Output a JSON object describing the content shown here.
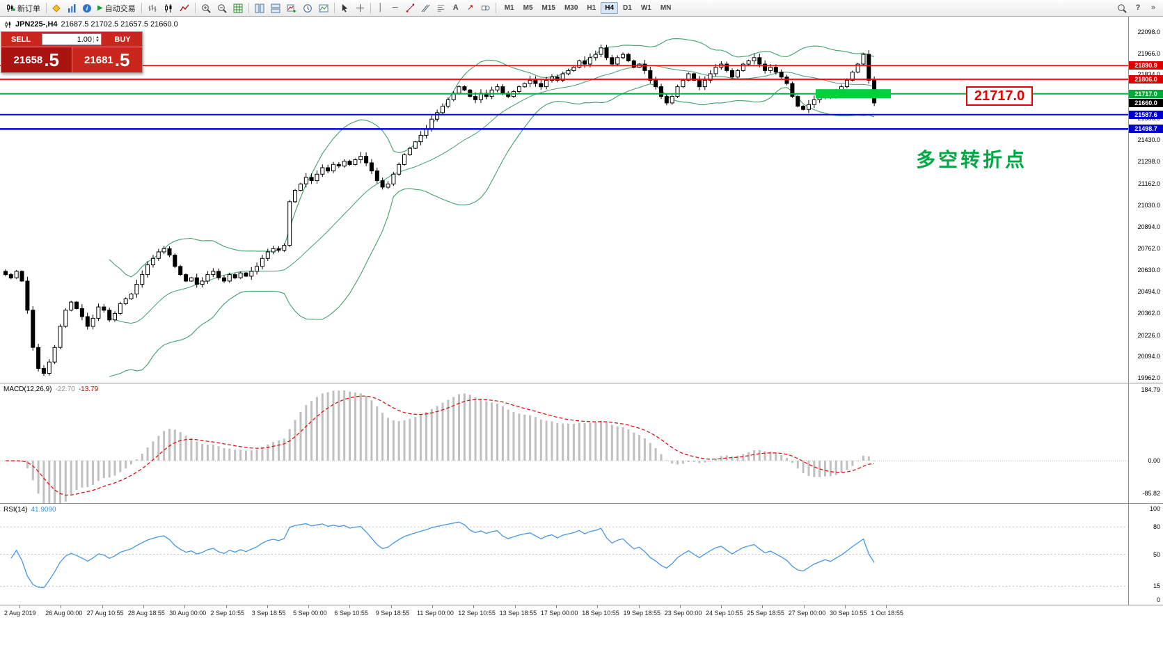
{
  "toolbar": {
    "new_order_label": "新订单",
    "autotrading_label": "自动交易",
    "timeframes": [
      "M1",
      "M5",
      "M15",
      "M30",
      "H1",
      "H4",
      "D1",
      "W1",
      "MN"
    ],
    "active_timeframe": "H4"
  },
  "icons": {
    "new_order": "candlestick-plus",
    "metaeditor": "yellow-diamond",
    "profiles": "bar-chart-blue",
    "expert_advisors": "info-circle",
    "autotrading_play": "green-play-triangle",
    "chart_bars": "ohlc-bars",
    "chart_candles": "candlesticks",
    "chart_line": "line-zigzag",
    "zoom_in": "magnifier-plus",
    "zoom_out": "magnifier-minus",
    "grid": "green-grid",
    "tile_windows": "tiled-rects",
    "new_chart": "chart-plus",
    "period": "clock",
    "cursor": "arrow-pointer",
    "crosshair": "crosshair",
    "vertical_line": "vertical-bar",
    "horizontal_line": "horizontal-bar",
    "trendline": "diagonal-line",
    "channel": "parallel-lines",
    "fibonacci": "fibo-levels",
    "text": "A",
    "arrow_objects": "arrow-up-right",
    "shapes": "rect-ellipse",
    "search": "magnifier",
    "overflow": "chevrons"
  },
  "chart_header": {
    "symbol": "JPN225-,H4",
    "ohlc": "21687.5 21702.5 21657.5 21660.0"
  },
  "trade_panel": {
    "sell_label": "SELL",
    "buy_label": "BUY",
    "volume": "1.00",
    "sell_price": "21658",
    "sell_frac": ".5",
    "buy_price": "21681",
    "buy_frac": ".5"
  },
  "macd_panel": {
    "name": "MACD(12,26,9)",
    "value": "-22.70",
    "signal": "-13.79",
    "scale": [
      "184.79",
      "0.00",
      "-85.82"
    ]
  },
  "rsi_panel": {
    "name": "RSI(14)",
    "value": "41.9090",
    "scale": [
      "100",
      "80",
      "50",
      "15",
      "0"
    ]
  },
  "annotation": {
    "text": "多空转折点",
    "color": "#00a843"
  },
  "callout": {
    "price": "21717.0"
  },
  "chart_data": {
    "type": "candlestick",
    "symbol": "JPN225-",
    "timeframe": "H4",
    "y_range": [
      19962.0,
      22098.0
    ],
    "bollinger": {
      "period": 20,
      "deviation": 2
    },
    "macd": {
      "fast": 12,
      "slow": 26,
      "signal": 9,
      "current": -22.7,
      "signal_current": -13.79
    },
    "rsi": {
      "period": 14,
      "current": 41.909
    },
    "colors": {
      "bollinger": "#3fa06a",
      "macd_hist": "#c0c0c0",
      "macd_signal": "#e60000",
      "rsi_line": "#4596e8",
      "pivot_highlight": "#00d03c",
      "up_candle": "#ffffff",
      "down_candle": "#000000"
    },
    "levels": [
      {
        "key": "resistance1",
        "price": "21890.9",
        "line": "#ff0000",
        "tag": "#dd0000",
        "w": 1.5
      },
      {
        "key": "resistance2",
        "price": "21806.0",
        "line": "#ff0000",
        "tag": "#dd0000",
        "w": 2
      },
      {
        "key": "pivot",
        "price": "21717.0",
        "line": "#00b33c",
        "tag": "#00a838",
        "w": 2
      },
      {
        "key": "current",
        "price": "21660.0",
        "line": null,
        "tag": "#000000",
        "w": 0
      },
      {
        "key": "support1",
        "price": "21587.6",
        "line": "#0000e0",
        "tag": "#0000cc",
        "w": 2
      },
      {
        "key": "support2",
        "price": "21498.7",
        "line": "#0000e0",
        "tag": "#0000cc",
        "w": 2.5
      }
    ],
    "price_scale": [
      "22098.0",
      "21966.0",
      "21834.0",
      "21702.0",
      "21566.0",
      "21430.0",
      "21298.0",
      "21162.0",
      "21030.0",
      "20894.0",
      "20762.0",
      "20630.0",
      "20494.0",
      "20362.0",
      "20226.0",
      "20094.0",
      "19962.0"
    ],
    "time_axis": [
      "2 Aug 2019",
      "26 Aug 00:00",
      "27 Aug 10:55",
      "28 Aug 18:55",
      "30 Aug 00:00",
      "2 Sep 10:55",
      "3 Sep 18:55",
      "5 Sep 00:00",
      "6 Sep 10:55",
      "9 Sep 18:55",
      "11 Sep 00:00",
      "12 Sep 10:55",
      "13 Sep 18:55",
      "17 Sep 00:00",
      "18 Sep 10:55",
      "19 Sep 18:55",
      "23 Sep 00:00",
      "24 Sep 10:55",
      "25 Sep 18:55",
      "27 Sep 00:00",
      "30 Sep 10:55",
      "1 Oct 18:55"
    ],
    "closes": [
      20600,
      20580,
      20620,
      20560,
      20380,
      20150,
      20020,
      19990,
      20060,
      20150,
      20280,
      20380,
      20430,
      20390,
      20340,
      20280,
      20330,
      20400,
      20380,
      20320,
      20360,
      20420,
      20450,
      20480,
      20540,
      20600,
      20660,
      20700,
      20740,
      20760,
      20720,
      20650,
      20600,
      20560,
      20580,
      20540,
      20560,
      20600,
      20620,
      20580,
      20560,
      20600,
      20580,
      20610,
      20590,
      20620,
      20650,
      20700,
      20740,
      20760,
      20750,
      20780,
      21050,
      21120,
      21160,
      21200,
      21180,
      21220,
      21260,
      21240,
      21280,
      21270,
      21300,
      21280,
      21310,
      21330,
      21290,
      21240,
      21180,
      21140,
      21160,
      21220,
      21280,
      21340,
      21380,
      21420,
      21460,
      21500,
      21560,
      21600,
      21640,
      21680,
      21720,
      21760,
      21740,
      21700,
      21680,
      21720,
      21700,
      21740,
      21760,
      21720,
      21700,
      21730,
      21760,
      21780,
      21800,
      21780,
      21760,
      21800,
      21820,
      21800,
      21840,
      21860,
      21880,
      21920,
      21900,
      21940,
      21960,
      22000,
      21940,
      21900,
      21940,
      21960,
      21920,
      21880,
      21900,
      21860,
      21800,
      21760,
      21700,
      21660,
      21700,
      21760,
      21800,
      21840,
      21800,
      21760,
      21800,
      21840,
      21880,
      21900,
      21860,
      21820,
      21860,
      21900,
      21920,
      21940,
      21900,
      21860,
      21880,
      21850,
      21820,
      21780,
      21700,
      21640,
      21620,
      21650,
      21680,
      21700,
      21720,
      21700,
      21730,
      21760,
      21800,
      21850,
      21900,
      21960,
      21800,
      21660
    ]
  }
}
